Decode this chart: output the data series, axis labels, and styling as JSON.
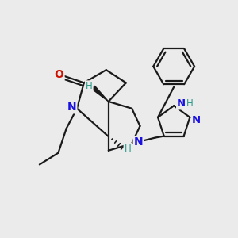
{
  "bg_color": "#ebebeb",
  "bond_color": "#1a1a1a",
  "N_blue": "#1a10e0",
  "O_red": "#cc1100",
  "H_teal": "#2a9a8a",
  "lw": 1.6,
  "figsize": [
    3.0,
    3.0
  ],
  "dpi": 100,
  "xlim": [
    0,
    10
  ],
  "ylim": [
    0,
    10
  ]
}
